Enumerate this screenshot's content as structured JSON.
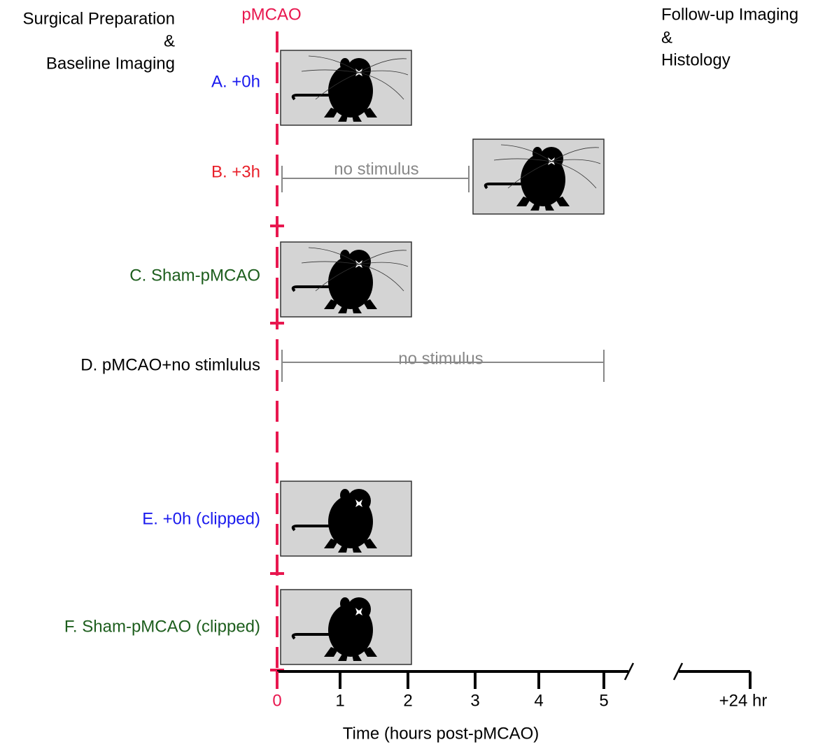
{
  "header": {
    "left": [
      "Surgical Preparation",
      "&",
      "Baseline Imaging"
    ],
    "marker": "pMCAO",
    "right": [
      "Follow-up Imaging",
      "&",
      "Histology"
    ]
  },
  "groups": [
    {
      "label": "A. +0h"
    },
    {
      "label": "B. +3h",
      "stimulus": "no stimulus"
    },
    {
      "label": "C. Sham-pMCAO"
    },
    {
      "label": "D. pMCAO+no stimlulus",
      "stimulus": "no stimulus"
    },
    {
      "label": "E. +0h (clipped)"
    },
    {
      "label": "F. Sham-pMCAO (clipped)"
    }
  ],
  "axis": {
    "ticks": [
      "0",
      "1",
      "2",
      "3",
      "4",
      "5",
      "+24 hr"
    ],
    "title": "Time (hours post-pMCAO)"
  }
}
